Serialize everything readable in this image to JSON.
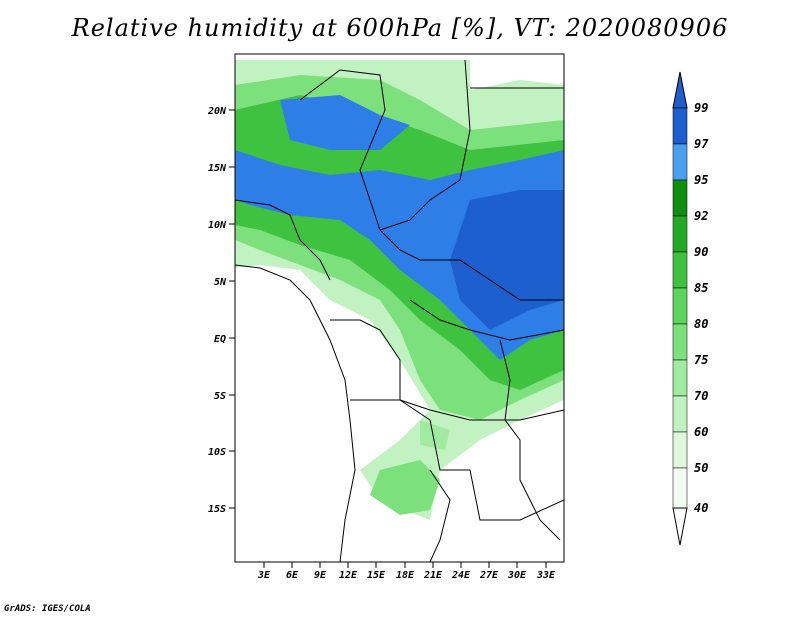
{
  "title": "Relative humidity at 600hPa [%], VT: 2020080906",
  "credit": "GrADS: IGES/COLA",
  "map": {
    "lat_ticks": [
      "20N",
      "15N",
      "10N",
      "5N",
      "EQ",
      "5S",
      "10S",
      "15S"
    ],
    "lon_ticks": [
      "3E",
      "6E",
      "9E",
      "12E",
      "15E",
      "18E",
      "21E",
      "24E",
      "27E",
      "30E",
      "33E"
    ]
  },
  "colorbar": {
    "labels": [
      "99",
      "97",
      "95",
      "92",
      "90",
      "85",
      "80",
      "75",
      "70",
      "60",
      "50",
      "40"
    ],
    "colors": [
      "#1e5fcf",
      "#2e7ee8",
      "#4aa0f0",
      "#0f8f0f",
      "#22aa22",
      "#3fc23f",
      "#5ad45a",
      "#7ce07c",
      "#a0eba0",
      "#c2f2c2",
      "#ddf8dd",
      "#f2fcf2"
    ]
  }
}
